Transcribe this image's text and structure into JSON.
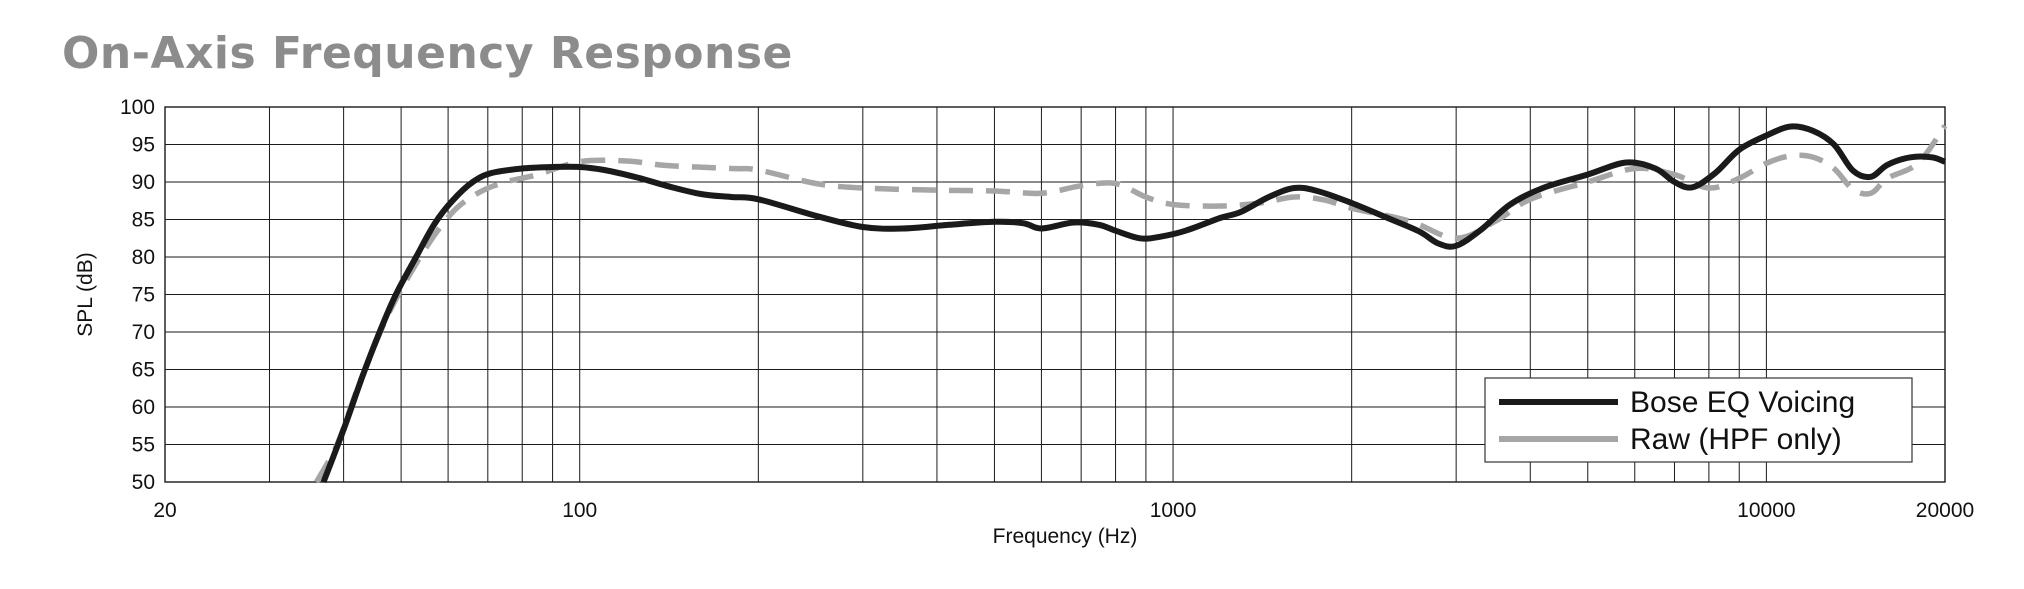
{
  "chart_data": {
    "type": "line",
    "title": "On-Axis Frequency Response",
    "xlabel": "Frequency (Hz)",
    "ylabel": "SPL (dB)",
    "xscale": "log",
    "xlim": [
      20,
      20000
    ],
    "ylim": [
      50,
      100
    ],
    "x_tick_labels": [
      "20",
      "100",
      "1000",
      "10000",
      "20000"
    ],
    "x_ticks": [
      20,
      100,
      1000,
      10000,
      20000
    ],
    "y_ticks": [
      50,
      55,
      60,
      65,
      70,
      75,
      80,
      85,
      90,
      95,
      100
    ],
    "grid": true,
    "legend_position": "bottom-right",
    "series": [
      {
        "name": "Bose EQ Voicing",
        "color": "#1a1a1a",
        "style": "solid",
        "points": [
          [
            37,
            50
          ],
          [
            40,
            57
          ],
          [
            43,
            64
          ],
          [
            46,
            70
          ],
          [
            49,
            75
          ],
          [
            53,
            80
          ],
          [
            57,
            84.5
          ],
          [
            61,
            87.5
          ],
          [
            66,
            90
          ],
          [
            71,
            91.2
          ],
          [
            80,
            91.8
          ],
          [
            90,
            92
          ],
          [
            100,
            92
          ],
          [
            110,
            91.6
          ],
          [
            125,
            90.6
          ],
          [
            140,
            89.5
          ],
          [
            160,
            88.4
          ],
          [
            180,
            88
          ],
          [
            200,
            87.7
          ],
          [
            250,
            85.5
          ],
          [
            300,
            84
          ],
          [
            350,
            83.8
          ],
          [
            420,
            84.3
          ],
          [
            500,
            84.7
          ],
          [
            560,
            84.5
          ],
          [
            600,
            83.8
          ],
          [
            680,
            84.6
          ],
          [
            750,
            84.3
          ],
          [
            800,
            83.5
          ],
          [
            880,
            82.5
          ],
          [
            950,
            82.7
          ],
          [
            1050,
            83.5
          ],
          [
            1200,
            85.2
          ],
          [
            1300,
            86
          ],
          [
            1450,
            88
          ],
          [
            1600,
            89.2
          ],
          [
            1750,
            88.8
          ],
          [
            2000,
            87.2
          ],
          [
            2300,
            85.2
          ],
          [
            2600,
            83.4
          ],
          [
            2800,
            81.8
          ],
          [
            3000,
            81.5
          ],
          [
            3300,
            83.6
          ],
          [
            3700,
            87
          ],
          [
            4200,
            89.2
          ],
          [
            5000,
            91
          ],
          [
            5800,
            92.6
          ],
          [
            6500,
            91.8
          ],
          [
            7000,
            90
          ],
          [
            7500,
            89.3
          ],
          [
            8200,
            91.2
          ],
          [
            9000,
            94.3
          ],
          [
            10000,
            96.2
          ],
          [
            11000,
            97.4
          ],
          [
            12000,
            96.8
          ],
          [
            13000,
            95
          ],
          [
            14000,
            91.5
          ],
          [
            15000,
            90.7
          ],
          [
            16000,
            92.3
          ],
          [
            17500,
            93.3
          ],
          [
            19000,
            93.3
          ],
          [
            20000,
            92.7
          ]
        ]
      },
      {
        "name": "Raw (HPF only)",
        "color": "#a6a6a6",
        "style": "dashed",
        "points": [
          [
            36,
            50
          ],
          [
            39,
            55
          ],
          [
            42,
            62
          ],
          [
            45,
            68
          ],
          [
            48,
            73
          ],
          [
            52,
            78
          ],
          [
            57,
            83
          ],
          [
            62,
            86.5
          ],
          [
            68,
            88.7
          ],
          [
            75,
            90
          ],
          [
            85,
            91
          ],
          [
            100,
            92.7
          ],
          [
            120,
            92.8
          ],
          [
            140,
            92.2
          ],
          [
            180,
            91.8
          ],
          [
            200,
            91.6
          ],
          [
            250,
            89.8
          ],
          [
            300,
            89.2
          ],
          [
            400,
            88.9
          ],
          [
            500,
            88.8
          ],
          [
            600,
            88.5
          ],
          [
            700,
            89.5
          ],
          [
            800,
            89.8
          ],
          [
            900,
            88
          ],
          [
            1000,
            87
          ],
          [
            1200,
            86.8
          ],
          [
            1400,
            87.2
          ],
          [
            1600,
            88
          ],
          [
            1800,
            87.6
          ],
          [
            2000,
            86.5
          ],
          [
            2500,
            84.8
          ],
          [
            3000,
            82.5
          ],
          [
            3500,
            84.8
          ],
          [
            4000,
            87.7
          ],
          [
            5000,
            90
          ],
          [
            6000,
            91.8
          ],
          [
            7000,
            91
          ],
          [
            8000,
            89.2
          ],
          [
            9000,
            90.5
          ],
          [
            10000,
            92.5
          ],
          [
            11000,
            93.5
          ],
          [
            12000,
            93.3
          ],
          [
            13000,
            91.8
          ],
          [
            14000,
            89
          ],
          [
            15000,
            88.5
          ],
          [
            16000,
            90.5
          ],
          [
            18000,
            92.5
          ],
          [
            20000,
            97.5
          ]
        ]
      }
    ]
  }
}
